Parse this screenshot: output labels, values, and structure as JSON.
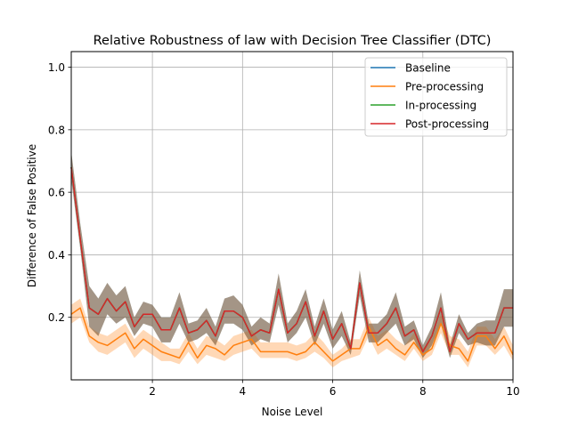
{
  "chart_data": {
    "type": "line",
    "title": "Relative Robustness of law with Decision Tree Classifier (DTC)",
    "xlabel": "Noise Level",
    "ylabel": "Difference of False Positive",
    "xlim": [
      0.2,
      10
    ],
    "ylim": [
      0,
      1.05
    ],
    "xticks": [
      2,
      4,
      6,
      8,
      10
    ],
    "yticks": [
      0.2,
      0.4,
      0.6,
      0.8,
      1.0
    ],
    "ytick_labels": [
      "0.2",
      "0.4",
      "0.6",
      "0.8",
      "1.0"
    ],
    "grid": true,
    "legend_position": "top-right",
    "x": [
      0.2,
      0.4,
      0.6,
      0.8,
      1.0,
      1.2,
      1.4,
      1.6,
      1.8,
      2.0,
      2.2,
      2.4,
      2.6,
      2.8,
      3.0,
      3.2,
      3.4,
      3.6,
      3.8,
      4.0,
      4.2,
      4.4,
      4.6,
      4.8,
      5.0,
      5.2,
      5.4,
      5.6,
      5.8,
      6.0,
      6.2,
      6.4,
      6.6,
      6.8,
      7.0,
      7.2,
      7.4,
      7.6,
      7.8,
      8.0,
      8.2,
      8.4,
      8.6,
      8.8,
      9.0,
      9.2,
      9.4,
      9.6,
      9.8,
      10.0
    ],
    "series": [
      {
        "name": "Baseline",
        "color": "#1f77b4",
        "values": [
          0.68,
          0.45,
          0.23,
          0.21,
          0.26,
          0.22,
          0.25,
          0.17,
          0.21,
          0.21,
          0.16,
          0.16,
          0.23,
          0.15,
          0.16,
          0.19,
          0.14,
          0.22,
          0.22,
          0.2,
          0.14,
          0.16,
          0.15,
          0.29,
          0.15,
          0.18,
          0.25,
          0.14,
          0.22,
          0.13,
          0.18,
          0.1,
          0.31,
          0.15,
          0.15,
          0.18,
          0.23,
          0.14,
          0.16,
          0.09,
          0.14,
          0.23,
          0.09,
          0.18,
          0.13,
          0.15,
          0.15,
          0.15,
          0.23,
          0.23
        ],
        "lower": [
          0.64,
          0.42,
          0.17,
          0.14,
          0.21,
          0.18,
          0.2,
          0.14,
          0.18,
          0.17,
          0.12,
          0.12,
          0.18,
          0.12,
          0.13,
          0.15,
          0.11,
          0.18,
          0.18,
          0.16,
          0.11,
          0.13,
          0.12,
          0.24,
          0.12,
          0.15,
          0.2,
          0.11,
          0.18,
          0.1,
          0.14,
          0.08,
          0.27,
          0.12,
          0.12,
          0.15,
          0.18,
          0.11,
          0.13,
          0.07,
          0.11,
          0.18,
          0.07,
          0.15,
          0.11,
          0.12,
          0.11,
          0.11,
          0.17,
          0.17
        ],
        "upper": [
          0.73,
          0.5,
          0.3,
          0.26,
          0.31,
          0.27,
          0.3,
          0.2,
          0.25,
          0.24,
          0.2,
          0.2,
          0.28,
          0.18,
          0.19,
          0.23,
          0.17,
          0.26,
          0.27,
          0.24,
          0.17,
          0.2,
          0.18,
          0.34,
          0.18,
          0.22,
          0.29,
          0.17,
          0.26,
          0.16,
          0.22,
          0.12,
          0.35,
          0.18,
          0.18,
          0.21,
          0.28,
          0.17,
          0.19,
          0.11,
          0.17,
          0.28,
          0.11,
          0.21,
          0.15,
          0.18,
          0.19,
          0.19,
          0.29,
          0.29
        ]
      },
      {
        "name": "Pre-processing",
        "color": "#ff7f0e",
        "values": [
          0.21,
          0.23,
          0.14,
          0.12,
          0.11,
          0.13,
          0.15,
          0.1,
          0.13,
          0.11,
          0.09,
          0.08,
          0.07,
          0.12,
          0.07,
          0.11,
          0.1,
          0.08,
          0.11,
          0.12,
          0.13,
          0.09,
          0.09,
          0.09,
          0.09,
          0.08,
          0.09,
          0.12,
          0.09,
          0.06,
          0.08,
          0.1,
          0.1,
          0.17,
          0.11,
          0.13,
          0.1,
          0.08,
          0.12,
          0.08,
          0.1,
          0.18,
          0.11,
          0.1,
          0.06,
          0.14,
          0.14,
          0.1,
          0.14,
          0.08
        ],
        "lower": [
          0.18,
          0.2,
          0.12,
          0.09,
          0.08,
          0.1,
          0.12,
          0.07,
          0.1,
          0.08,
          0.06,
          0.06,
          0.05,
          0.09,
          0.05,
          0.08,
          0.07,
          0.06,
          0.08,
          0.09,
          0.1,
          0.07,
          0.07,
          0.07,
          0.07,
          0.06,
          0.07,
          0.09,
          0.07,
          0.04,
          0.06,
          0.07,
          0.08,
          0.14,
          0.08,
          0.1,
          0.08,
          0.06,
          0.1,
          0.06,
          0.08,
          0.15,
          0.08,
          0.08,
          0.04,
          0.11,
          0.11,
          0.08,
          0.11,
          0.06
        ],
        "upper": [
          0.24,
          0.26,
          0.17,
          0.15,
          0.14,
          0.16,
          0.18,
          0.13,
          0.16,
          0.14,
          0.12,
          0.1,
          0.1,
          0.15,
          0.1,
          0.14,
          0.13,
          0.11,
          0.14,
          0.15,
          0.16,
          0.12,
          0.12,
          0.12,
          0.12,
          0.11,
          0.12,
          0.15,
          0.12,
          0.08,
          0.1,
          0.13,
          0.13,
          0.2,
          0.14,
          0.16,
          0.13,
          0.11,
          0.15,
          0.1,
          0.13,
          0.21,
          0.14,
          0.13,
          0.09,
          0.17,
          0.17,
          0.13,
          0.17,
          0.11
        ]
      },
      {
        "name": "In-processing",
        "color": "#2ca02c",
        "values": [
          0.68,
          0.45,
          0.23,
          0.21,
          0.26,
          0.22,
          0.25,
          0.17,
          0.21,
          0.21,
          0.16,
          0.16,
          0.23,
          0.15,
          0.16,
          0.19,
          0.14,
          0.22,
          0.22,
          0.2,
          0.14,
          0.16,
          0.15,
          0.29,
          0.15,
          0.18,
          0.25,
          0.14,
          0.22,
          0.13,
          0.18,
          0.1,
          0.31,
          0.15,
          0.15,
          0.18,
          0.23,
          0.14,
          0.16,
          0.09,
          0.14,
          0.23,
          0.09,
          0.18,
          0.13,
          0.15,
          0.15,
          0.15,
          0.23,
          0.23
        ],
        "lower": [
          0.64,
          0.42,
          0.17,
          0.14,
          0.21,
          0.18,
          0.2,
          0.14,
          0.18,
          0.17,
          0.12,
          0.12,
          0.18,
          0.12,
          0.13,
          0.15,
          0.11,
          0.18,
          0.18,
          0.16,
          0.11,
          0.13,
          0.12,
          0.24,
          0.12,
          0.15,
          0.2,
          0.11,
          0.18,
          0.1,
          0.14,
          0.08,
          0.27,
          0.12,
          0.12,
          0.15,
          0.18,
          0.11,
          0.13,
          0.07,
          0.11,
          0.18,
          0.07,
          0.15,
          0.11,
          0.12,
          0.11,
          0.11,
          0.17,
          0.17
        ],
        "upper": [
          0.73,
          0.5,
          0.3,
          0.26,
          0.31,
          0.27,
          0.3,
          0.2,
          0.25,
          0.24,
          0.2,
          0.2,
          0.28,
          0.18,
          0.19,
          0.23,
          0.17,
          0.26,
          0.27,
          0.24,
          0.17,
          0.2,
          0.18,
          0.34,
          0.18,
          0.22,
          0.29,
          0.17,
          0.26,
          0.16,
          0.22,
          0.12,
          0.35,
          0.18,
          0.18,
          0.21,
          0.28,
          0.17,
          0.19,
          0.11,
          0.17,
          0.28,
          0.11,
          0.21,
          0.15,
          0.18,
          0.19,
          0.19,
          0.29,
          0.29
        ]
      },
      {
        "name": "Post-processing",
        "color": "#d62728",
        "values": [
          0.68,
          0.45,
          0.23,
          0.21,
          0.26,
          0.22,
          0.25,
          0.17,
          0.21,
          0.21,
          0.16,
          0.16,
          0.23,
          0.15,
          0.16,
          0.19,
          0.14,
          0.22,
          0.22,
          0.2,
          0.14,
          0.16,
          0.15,
          0.29,
          0.15,
          0.18,
          0.25,
          0.14,
          0.22,
          0.13,
          0.18,
          0.1,
          0.31,
          0.15,
          0.15,
          0.18,
          0.23,
          0.14,
          0.16,
          0.09,
          0.14,
          0.23,
          0.09,
          0.18,
          0.13,
          0.15,
          0.15,
          0.15,
          0.23,
          0.23
        ],
        "lower": [
          0.64,
          0.42,
          0.17,
          0.14,
          0.21,
          0.18,
          0.2,
          0.14,
          0.18,
          0.17,
          0.12,
          0.12,
          0.18,
          0.12,
          0.13,
          0.15,
          0.11,
          0.18,
          0.18,
          0.16,
          0.11,
          0.13,
          0.12,
          0.24,
          0.12,
          0.15,
          0.2,
          0.11,
          0.18,
          0.1,
          0.14,
          0.08,
          0.27,
          0.12,
          0.12,
          0.15,
          0.18,
          0.11,
          0.13,
          0.07,
          0.11,
          0.18,
          0.07,
          0.15,
          0.11,
          0.12,
          0.11,
          0.11,
          0.17,
          0.17
        ],
        "upper": [
          0.73,
          0.5,
          0.3,
          0.26,
          0.31,
          0.27,
          0.3,
          0.2,
          0.25,
          0.24,
          0.2,
          0.2,
          0.28,
          0.18,
          0.19,
          0.23,
          0.17,
          0.26,
          0.27,
          0.24,
          0.17,
          0.2,
          0.18,
          0.34,
          0.18,
          0.22,
          0.29,
          0.17,
          0.26,
          0.16,
          0.22,
          0.12,
          0.35,
          0.18,
          0.18,
          0.21,
          0.28,
          0.17,
          0.19,
          0.11,
          0.17,
          0.28,
          0.11,
          0.21,
          0.15,
          0.18,
          0.19,
          0.19,
          0.29,
          0.29
        ]
      }
    ]
  }
}
